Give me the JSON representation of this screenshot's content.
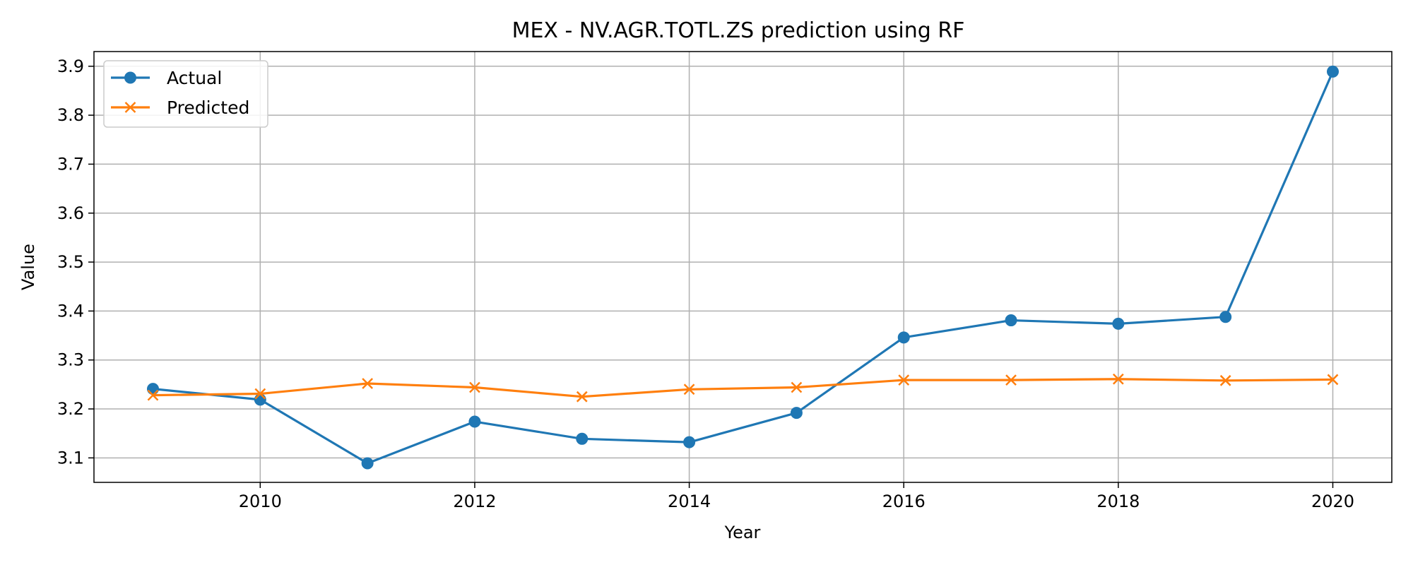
{
  "chart_data": {
    "type": "line",
    "title": "MEX - NV.AGR.TOTL.ZS prediction using RF",
    "xlabel": "Year",
    "ylabel": "Value",
    "x": [
      2009,
      2010,
      2011,
      2012,
      2013,
      2014,
      2015,
      2016,
      2017,
      2018,
      2019,
      2020
    ],
    "xlim": [
      2008.45,
      2020.55
    ],
    "ylim": [
      3.05,
      3.93
    ],
    "xticks": [
      2010,
      2012,
      2014,
      2016,
      2018,
      2020
    ],
    "xtick_labels": [
      "2010",
      "2012",
      "2014",
      "2016",
      "2018",
      "2020"
    ],
    "yticks": [
      3.1,
      3.2,
      3.3,
      3.4,
      3.5,
      3.6,
      3.7,
      3.8,
      3.9
    ],
    "ytick_labels": [
      "3.1",
      "3.2",
      "3.3",
      "3.4",
      "3.5",
      "3.6",
      "3.7",
      "3.8",
      "3.9"
    ],
    "grid": true,
    "legend_position": "top-left",
    "series": [
      {
        "name": "Actual",
        "color": "#1f77b4",
        "marker": "circle",
        "values": [
          3.241,
          3.219,
          3.089,
          3.174,
          3.139,
          3.132,
          3.192,
          3.346,
          3.381,
          3.374,
          3.388,
          3.889
        ]
      },
      {
        "name": "Predicted",
        "color": "#ff7f0e",
        "marker": "x",
        "values": [
          3.228,
          3.231,
          3.252,
          3.244,
          3.225,
          3.24,
          3.244,
          3.259,
          3.259,
          3.261,
          3.258,
          3.26
        ]
      }
    ]
  }
}
